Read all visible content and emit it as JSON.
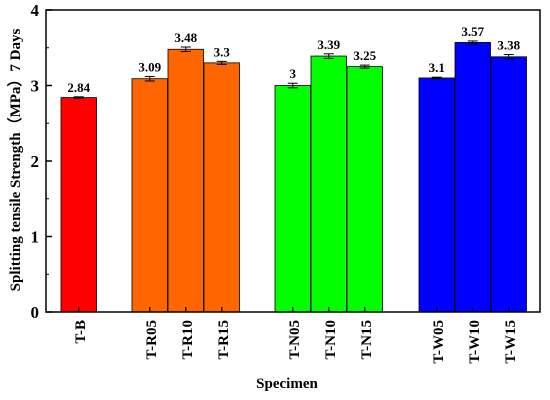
{
  "chart_data": {
    "type": "bar",
    "categories": [
      "T-B",
      "T-R05",
      "T-R10",
      "T-R15",
      "T-N05",
      "T-N10",
      "T-N15",
      "T-W05",
      "T-W10",
      "T-W15"
    ],
    "values": [
      2.84,
      3.09,
      3.48,
      3.3,
      3.0,
      3.39,
      3.25,
      3.1,
      3.57,
      3.38
    ],
    "data_labels": [
      "2.84",
      "3.09",
      "3.48",
      "3.3",
      "3",
      "3.39",
      "3.25",
      "3.1",
      "3.57",
      "3.38"
    ],
    "errors": [
      0.01,
      0.03,
      0.03,
      0.02,
      0.03,
      0.03,
      0.02,
      0.01,
      0.02,
      0.03
    ],
    "groups": [
      {
        "categories": [
          "T-B"
        ],
        "color": "#ff0000"
      },
      {
        "categories": [
          "T-R05",
          "T-R10",
          "T-R15"
        ],
        "color": "#ff6600"
      },
      {
        "categories": [
          "T-N05",
          "T-N10",
          "T-N15"
        ],
        "color": "#00ff00"
      },
      {
        "categories": [
          "T-W05",
          "T-W10",
          "T-W15"
        ],
        "color": "#0000ff"
      }
    ],
    "xlabel": "Specimen",
    "ylabel": "Splitting tensile Strength（MPa）7 Days",
    "ylim": [
      0,
      4
    ],
    "yticks": [
      "0",
      "1",
      "2",
      "3",
      "4"
    ],
    "grid": false,
    "error_bars": true
  }
}
